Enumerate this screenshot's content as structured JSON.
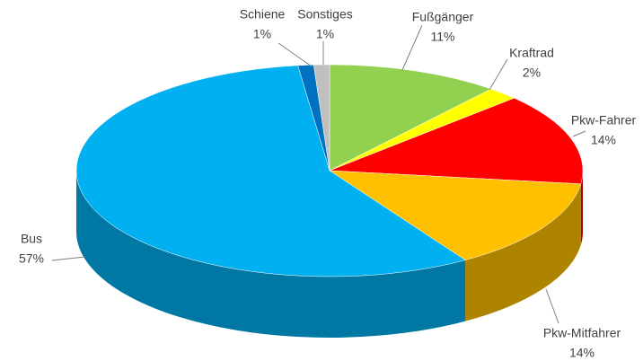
{
  "chart_data": {
    "type": "pie",
    "categories": [
      "Fußgänger",
      "Kraftrad",
      "Pkw-Fahrer",
      "Pkw-Mitfahrer",
      "Bus",
      "Schiene",
      "Sonstiges"
    ],
    "values": [
      11,
      2,
      14,
      14,
      57,
      1,
      1
    ],
    "value_labels": [
      "11%",
      "2%",
      "14%",
      "14%",
      "57%",
      "1%",
      "1%"
    ],
    "colors": [
      "#92d050",
      "#ffff00",
      "#ff0000",
      "#ffc000",
      "#00b0f0",
      "#0070c0",
      "#bfbfbf"
    ]
  }
}
